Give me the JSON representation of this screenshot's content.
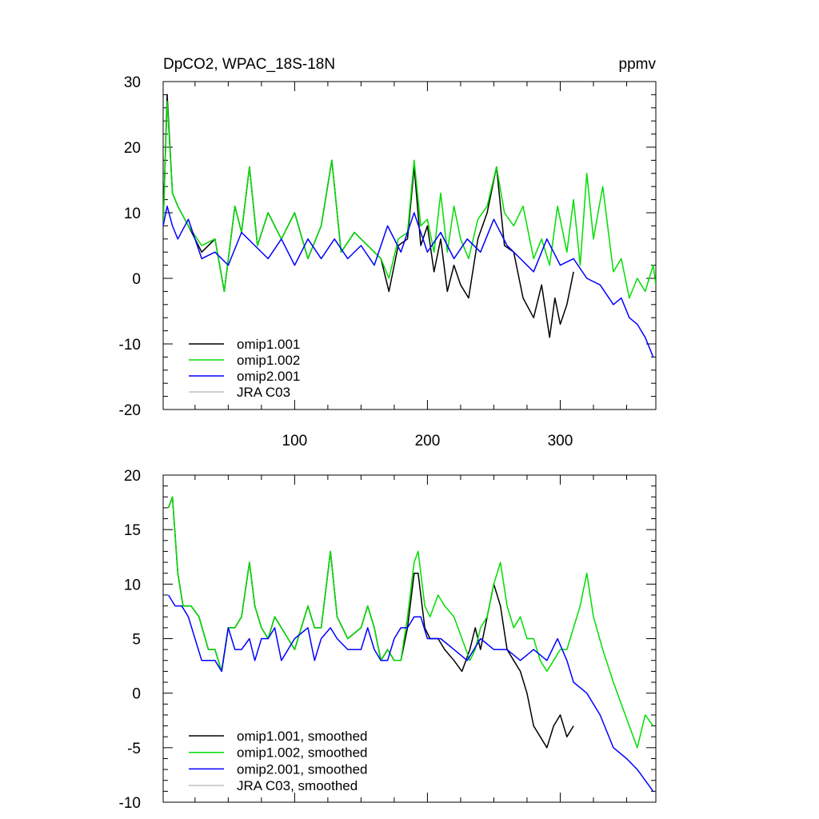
{
  "header": {
    "title": "DpCO2, WPAC_18S-18N",
    "units": "ppmv"
  },
  "chart_data": [
    {
      "type": "line",
      "title": "DpCO2, WPAC_18S-18N",
      "units": "ppmv",
      "xlim": [
        1,
        372
      ],
      "ylim": [
        -20,
        30
      ],
      "x_ticks": [
        "100",
        "200",
        "300"
      ],
      "y_ticks": [
        "-20",
        "-10",
        "0",
        "10",
        "20",
        "30"
      ],
      "legend": {
        "placement": "bottom-left",
        "entries": [
          "omip1.001",
          "omip1.002",
          "omip2.001",
          "JRA C03"
        ]
      },
      "series": [
        {
          "name": "omip1.001",
          "color": "#000000",
          "x": [
            1,
            4,
            8,
            12,
            20,
            30,
            40,
            47,
            55,
            60,
            66,
            72,
            80,
            90,
            100,
            110,
            120,
            128,
            135,
            145,
            155,
            165,
            171,
            178,
            185,
            190,
            195,
            200,
            205,
            210,
            215,
            220,
            225,
            231,
            238,
            245,
            252,
            258,
            265,
            272,
            280,
            286,
            292,
            296,
            300,
            305,
            310
          ],
          "y": [
            8,
            28,
            13,
            11,
            8,
            4,
            6,
            -2,
            11,
            7,
            17,
            5,
            10,
            6,
            10,
            3,
            8,
            18,
            4,
            7,
            5,
            3,
            -2,
            5,
            6,
            17,
            5,
            8,
            1,
            6,
            -2,
            2,
            -1,
            -3,
            6,
            10,
            17,
            5,
            4,
            -3,
            -6,
            -1,
            -9,
            -3,
            -7,
            -4,
            1
          ]
        },
        {
          "name": "omip1.002",
          "color": "#00dd00",
          "x": [
            1,
            4,
            8,
            12,
            20,
            30,
            40,
            47,
            55,
            60,
            66,
            72,
            80,
            90,
            100,
            110,
            120,
            128,
            135,
            145,
            155,
            165,
            171,
            178,
            185,
            190,
            195,
            200,
            205,
            210,
            215,
            220,
            225,
            231,
            238,
            245,
            252,
            258,
            265,
            272,
            280,
            286,
            292,
            298,
            305,
            310,
            315,
            320,
            325,
            332,
            340,
            346,
            352,
            358,
            364,
            370,
            372
          ],
          "y": [
            8,
            27,
            13,
            11,
            8,
            5,
            6,
            -2,
            11,
            7,
            17,
            5,
            10,
            6,
            10,
            3,
            8,
            18,
            4,
            7,
            5,
            3,
            0,
            6,
            7,
            18,
            8,
            9,
            4,
            13,
            4,
            11,
            6,
            3,
            9,
            11,
            17,
            10,
            8,
            11,
            3,
            6,
            2,
            11,
            4,
            12,
            2,
            16,
            6,
            14,
            1,
            3,
            -3,
            0,
            -2,
            2,
            -1
          ]
        },
        {
          "name": "omip2.001",
          "color": "#0000ff",
          "x": [
            1,
            4,
            8,
            12,
            20,
            30,
            40,
            50,
            60,
            70,
            80,
            90,
            100,
            110,
            120,
            130,
            140,
            150,
            160,
            170,
            180,
            190,
            200,
            210,
            220,
            230,
            240,
            250,
            260,
            270,
            280,
            290,
            300,
            310,
            320,
            330,
            340,
            346,
            352,
            358,
            364,
            370
          ],
          "y": [
            8,
            11,
            8,
            6,
            9,
            3,
            4,
            2,
            7,
            5,
            3,
            6,
            2,
            6,
            3,
            6,
            3,
            5,
            2,
            8,
            4,
            10,
            4,
            7,
            3,
            6,
            4,
            9,
            5,
            3,
            1,
            6,
            2,
            3,
            0,
            -1,
            -4,
            -3,
            -6,
            -7,
            -9,
            -12
          ]
        },
        {
          "name": "JRA C03",
          "color": "#c0c0c0",
          "x": [],
          "y": []
        }
      ]
    },
    {
      "type": "line",
      "xlim": [
        1,
        372
      ],
      "ylim": [
        -10,
        20
      ],
      "y_ticks": [
        "-10",
        "-5",
        "0",
        "5",
        "10",
        "15",
        "20"
      ],
      "legend": {
        "placement": "bottom-left",
        "entries": [
          "omip1.001, smoothed",
          "omip1.002, smoothed",
          "omip2.001, smoothed",
          "JRA C03, smoothed"
        ]
      },
      "series": [
        {
          "name": "omip1.001, smoothed",
          "color": "#000000",
          "x": [
            5,
            8,
            12,
            16,
            22,
            28,
            35,
            40,
            45,
            50,
            55,
            60,
            66,
            70,
            75,
            80,
            85,
            90,
            100,
            110,
            115,
            120,
            127,
            132,
            140,
            150,
            155,
            160,
            165,
            170,
            175,
            180,
            185,
            190,
            193,
            198,
            202,
            208,
            213,
            220,
            226,
            232,
            236,
            240,
            245,
            250,
            255,
            260,
            265,
            270,
            275,
            280,
            285,
            290,
            295,
            300,
            305,
            310
          ],
          "y": [
            17,
            18,
            11,
            8,
            8,
            7,
            4,
            4,
            2,
            6,
            6,
            7,
            12,
            8,
            6,
            5,
            7,
            6,
            4,
            8,
            6,
            6,
            13,
            7,
            5,
            6,
            8,
            6,
            3,
            4,
            3,
            3,
            6,
            11,
            11,
            6,
            5,
            5,
            4,
            3,
            2,
            4,
            6,
            4,
            7,
            10,
            8,
            4,
            3,
            2,
            0,
            -3,
            -4,
            -5,
            -3,
            -2,
            -4,
            -3
          ]
        },
        {
          "name": "omip1.002, smoothed",
          "color": "#00dd00",
          "x": [
            5,
            8,
            12,
            16,
            22,
            28,
            35,
            40,
            45,
            50,
            55,
            60,
            66,
            70,
            75,
            80,
            85,
            90,
            100,
            110,
            115,
            120,
            127,
            132,
            140,
            150,
            155,
            160,
            165,
            170,
            175,
            180,
            185,
            190,
            193,
            198,
            202,
            208,
            213,
            220,
            226,
            232,
            236,
            240,
            245,
            250,
            255,
            260,
            265,
            270,
            275,
            280,
            285,
            290,
            295,
            300,
            305,
            310,
            315,
            320,
            325,
            332,
            340,
            346,
            352,
            358,
            364,
            370
          ],
          "y": [
            17,
            18,
            11,
            8,
            8,
            7,
            4,
            4,
            2,
            6,
            6,
            7,
            12,
            8,
            6,
            5,
            7,
            6,
            4,
            8,
            6,
            6,
            13,
            7,
            5,
            6,
            8,
            6,
            3,
            4,
            3,
            3,
            7,
            12,
            13,
            8,
            7,
            9,
            8,
            7,
            5,
            3,
            4,
            6,
            7,
            10,
            12,
            8,
            6,
            7,
            5,
            5,
            3,
            2,
            3,
            4,
            4,
            6,
            8,
            11,
            7,
            4,
            1,
            -1,
            -3,
            -5,
            -2,
            -3
          ]
        },
        {
          "name": "omip2.001, smoothed",
          "color": "#0000ff",
          "x": [
            5,
            10,
            15,
            20,
            25,
            30,
            35,
            40,
            45,
            50,
            55,
            60,
            66,
            70,
            75,
            80,
            85,
            90,
            100,
            110,
            115,
            120,
            127,
            132,
            140,
            150,
            155,
            160,
            165,
            170,
            175,
            180,
            185,
            190,
            195,
            200,
            210,
            220,
            230,
            240,
            250,
            260,
            270,
            280,
            290,
            298,
            305,
            310,
            320,
            330,
            340,
            350,
            358,
            364,
            370
          ],
          "y": [
            9,
            8,
            8,
            7,
            5,
            3,
            3,
            3,
            2,
            6,
            4,
            4,
            5,
            3,
            5,
            5,
            6,
            3,
            5,
            6,
            3,
            5,
            6,
            5,
            4,
            4,
            6,
            4,
            3,
            3,
            5,
            6,
            6,
            7,
            7,
            5,
            5,
            4,
            3,
            5,
            4,
            4,
            3,
            4,
            3,
            5,
            3,
            1,
            0,
            -2,
            -5,
            -6,
            -7,
            -8,
            -9
          ]
        },
        {
          "name": "JRA C03, smoothed",
          "color": "#c0c0c0",
          "x": [],
          "y": []
        }
      ]
    }
  ]
}
